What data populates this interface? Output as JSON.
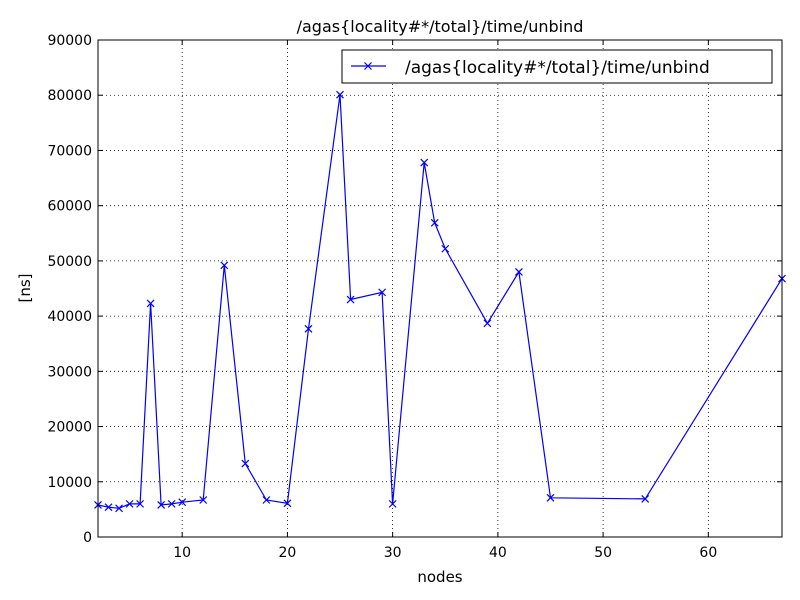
{
  "chart_data": {
    "type": "line",
    "title": "/agas{locality#*/total}/time/unbind",
    "xlabel": "nodes",
    "ylabel": "[ns]",
    "xlim": [
      2,
      67
    ],
    "ylim": [
      0,
      90000
    ],
    "xticks": [
      10,
      20,
      30,
      40,
      50,
      60
    ],
    "yticks": [
      0,
      10000,
      20000,
      30000,
      40000,
      50000,
      60000,
      70000,
      80000,
      90000
    ],
    "grid": true,
    "legend_position": "top-right",
    "series": [
      {
        "name": "/agas{locality#*/total}/time/unbind",
        "color": "#0000ff",
        "marker": "x",
        "x": [
          2,
          3,
          4,
          5,
          6,
          7,
          8,
          9,
          10,
          12,
          14,
          16,
          18,
          20,
          22,
          25,
          26,
          29,
          30,
          33,
          34,
          35,
          39,
          42,
          45,
          54,
          67
        ],
        "y": [
          5800,
          5400,
          5200,
          6000,
          6000,
          42300,
          5800,
          6000,
          6300,
          6700,
          49200,
          13300,
          6700,
          6100,
          37700,
          80100,
          43000,
          44300,
          6000,
          67800,
          56900,
          52200,
          38700,
          48000,
          7100,
          6900,
          46800
        ]
      }
    ]
  }
}
